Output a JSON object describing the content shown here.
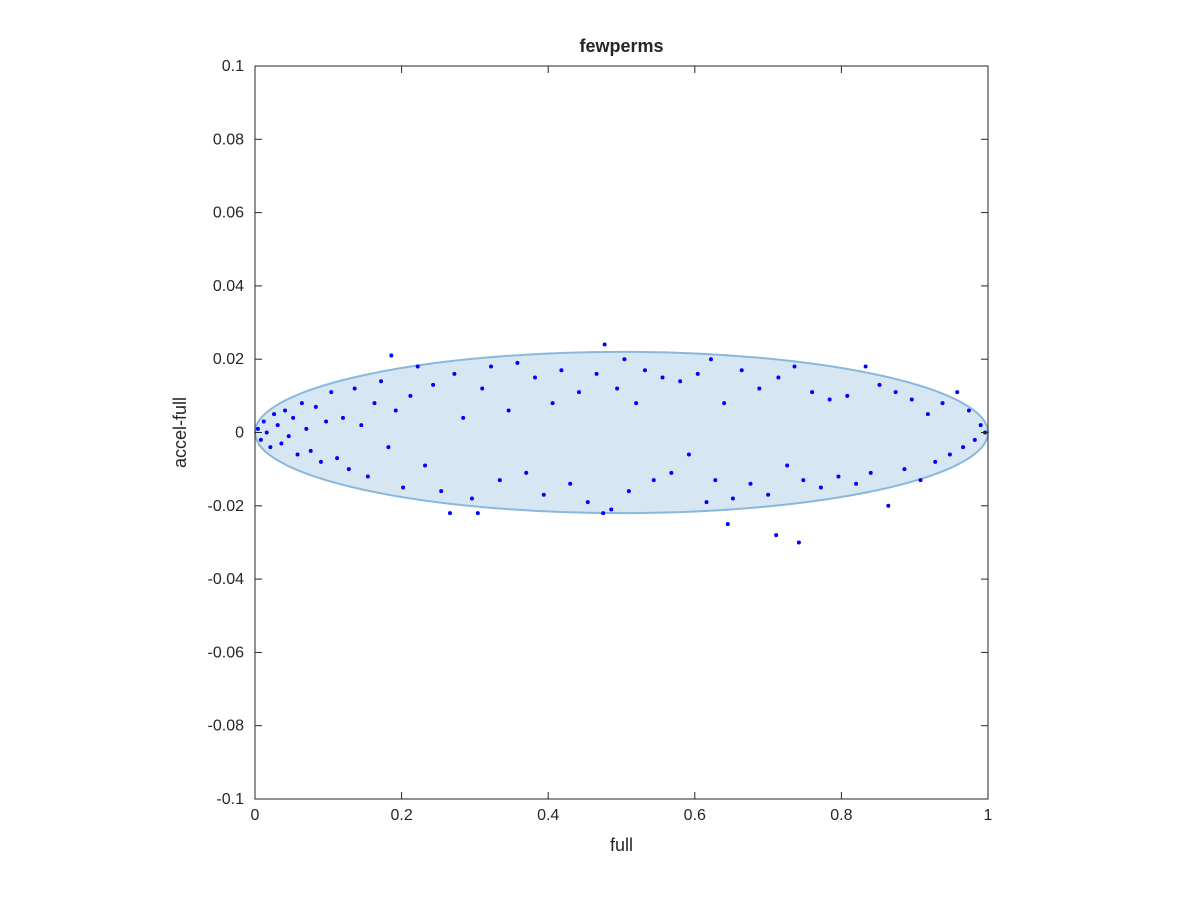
{
  "chart_data": {
    "type": "scatter",
    "title": "fewperms",
    "xlabel": "full",
    "ylabel": "accel-full",
    "xlim": [
      0,
      1
    ],
    "ylim": [
      -0.1,
      0.1
    ],
    "x_ticks": [
      0,
      0.2,
      0.4,
      0.6,
      0.8,
      1
    ],
    "x_tick_labels": [
      "0",
      "0.2",
      "0.4",
      "0.6",
      "0.8",
      "1"
    ],
    "y_ticks": [
      -0.1,
      -0.08,
      -0.06,
      -0.04,
      -0.02,
      0,
      0.02,
      0.04,
      0.06,
      0.08,
      0.1
    ],
    "y_tick_labels": [
      "-0.1",
      "-0.08",
      "-0.06",
      "-0.04",
      "-0.02",
      "0",
      "0.02",
      "0.04",
      "0.06",
      "0.08",
      "0.1"
    ],
    "grid": false,
    "marker_color": "#0000ff",
    "ellipse": {
      "center": [
        0.5,
        0
      ],
      "semi_axes": [
        0.5,
        0.022
      ],
      "fill": "#d6e6f2",
      "stroke": "#8ab8dc"
    },
    "series": [
      {
        "points": [
          [
            0.004,
            0.001
          ],
          [
            0.008,
            -0.002
          ],
          [
            0.012,
            0.003
          ],
          [
            0.016,
            0.0
          ],
          [
            0.021,
            -0.004
          ],
          [
            0.026,
            0.005
          ],
          [
            0.031,
            0.002
          ],
          [
            0.036,
            -0.003
          ],
          [
            0.041,
            0.006
          ],
          [
            0.046,
            -0.001
          ],
          [
            0.052,
            0.004
          ],
          [
            0.058,
            -0.006
          ],
          [
            0.064,
            0.008
          ],
          [
            0.07,
            0.001
          ],
          [
            0.076,
            -0.005
          ],
          [
            0.083,
            0.007
          ],
          [
            0.09,
            -0.008
          ],
          [
            0.097,
            0.003
          ],
          [
            0.104,
            0.011
          ],
          [
            0.112,
            -0.007
          ],
          [
            0.12,
            0.004
          ],
          [
            0.128,
            -0.01
          ],
          [
            0.136,
            0.012
          ],
          [
            0.145,
            0.002
          ],
          [
            0.154,
            -0.012
          ],
          [
            0.163,
            0.008
          ],
          [
            0.172,
            0.014
          ],
          [
            0.182,
            -0.004
          ],
          [
            0.186,
            0.021
          ],
          [
            0.192,
            0.006
          ],
          [
            0.202,
            -0.015
          ],
          [
            0.212,
            0.01
          ],
          [
            0.222,
            0.018
          ],
          [
            0.232,
            -0.009
          ],
          [
            0.243,
            0.013
          ],
          [
            0.254,
            -0.016
          ],
          [
            0.266,
            -0.022
          ],
          [
            0.272,
            0.016
          ],
          [
            0.284,
            0.004
          ],
          [
            0.296,
            -0.018
          ],
          [
            0.304,
            -0.022
          ],
          [
            0.31,
            0.012
          ],
          [
            0.322,
            0.018
          ],
          [
            0.334,
            -0.013
          ],
          [
            0.346,
            0.006
          ],
          [
            0.358,
            0.019
          ],
          [
            0.37,
            -0.011
          ],
          [
            0.382,
            0.015
          ],
          [
            0.394,
            -0.017
          ],
          [
            0.406,
            0.008
          ],
          [
            0.418,
            0.017
          ],
          [
            0.43,
            -0.014
          ],
          [
            0.442,
            0.011
          ],
          [
            0.454,
            -0.019
          ],
          [
            0.466,
            0.016
          ],
          [
            0.475,
            -0.022
          ],
          [
            0.477,
            0.024
          ],
          [
            0.486,
            -0.021
          ],
          [
            0.494,
            0.012
          ],
          [
            0.504,
            0.02
          ],
          [
            0.51,
            -0.016
          ],
          [
            0.52,
            0.008
          ],
          [
            0.532,
            0.017
          ],
          [
            0.544,
            -0.013
          ],
          [
            0.556,
            0.015
          ],
          [
            0.568,
            -0.011
          ],
          [
            0.58,
            0.014
          ],
          [
            0.592,
            -0.006
          ],
          [
            0.604,
            0.016
          ],
          [
            0.616,
            -0.019
          ],
          [
            0.622,
            0.02
          ],
          [
            0.628,
            -0.013
          ],
          [
            0.64,
            0.008
          ],
          [
            0.645,
            -0.025
          ],
          [
            0.652,
            -0.018
          ],
          [
            0.664,
            0.017
          ],
          [
            0.676,
            -0.014
          ],
          [
            0.688,
            0.012
          ],
          [
            0.7,
            -0.017
          ],
          [
            0.711,
            -0.028
          ],
          [
            0.714,
            0.015
          ],
          [
            0.726,
            -0.009
          ],
          [
            0.736,
            0.018
          ],
          [
            0.742,
            -0.03
          ],
          [
            0.748,
            -0.013
          ],
          [
            0.76,
            0.011
          ],
          [
            0.772,
            -0.015
          ],
          [
            0.784,
            0.009
          ],
          [
            0.796,
            -0.012
          ],
          [
            0.808,
            0.01
          ],
          [
            0.82,
            -0.014
          ],
          [
            0.833,
            0.018
          ],
          [
            0.84,
            -0.011
          ],
          [
            0.852,
            0.013
          ],
          [
            0.864,
            -0.02
          ],
          [
            0.874,
            0.011
          ],
          [
            0.886,
            -0.01
          ],
          [
            0.896,
            0.009
          ],
          [
            0.908,
            -0.013
          ],
          [
            0.918,
            0.005
          ],
          [
            0.928,
            -0.008
          ],
          [
            0.938,
            0.008
          ],
          [
            0.948,
            -0.006
          ],
          [
            0.958,
            0.011
          ],
          [
            0.966,
            -0.004
          ],
          [
            0.974,
            0.006
          ],
          [
            0.982,
            -0.002
          ],
          [
            0.99,
            0.002
          ],
          [
            0.996,
            0.0
          ]
        ]
      }
    ]
  }
}
